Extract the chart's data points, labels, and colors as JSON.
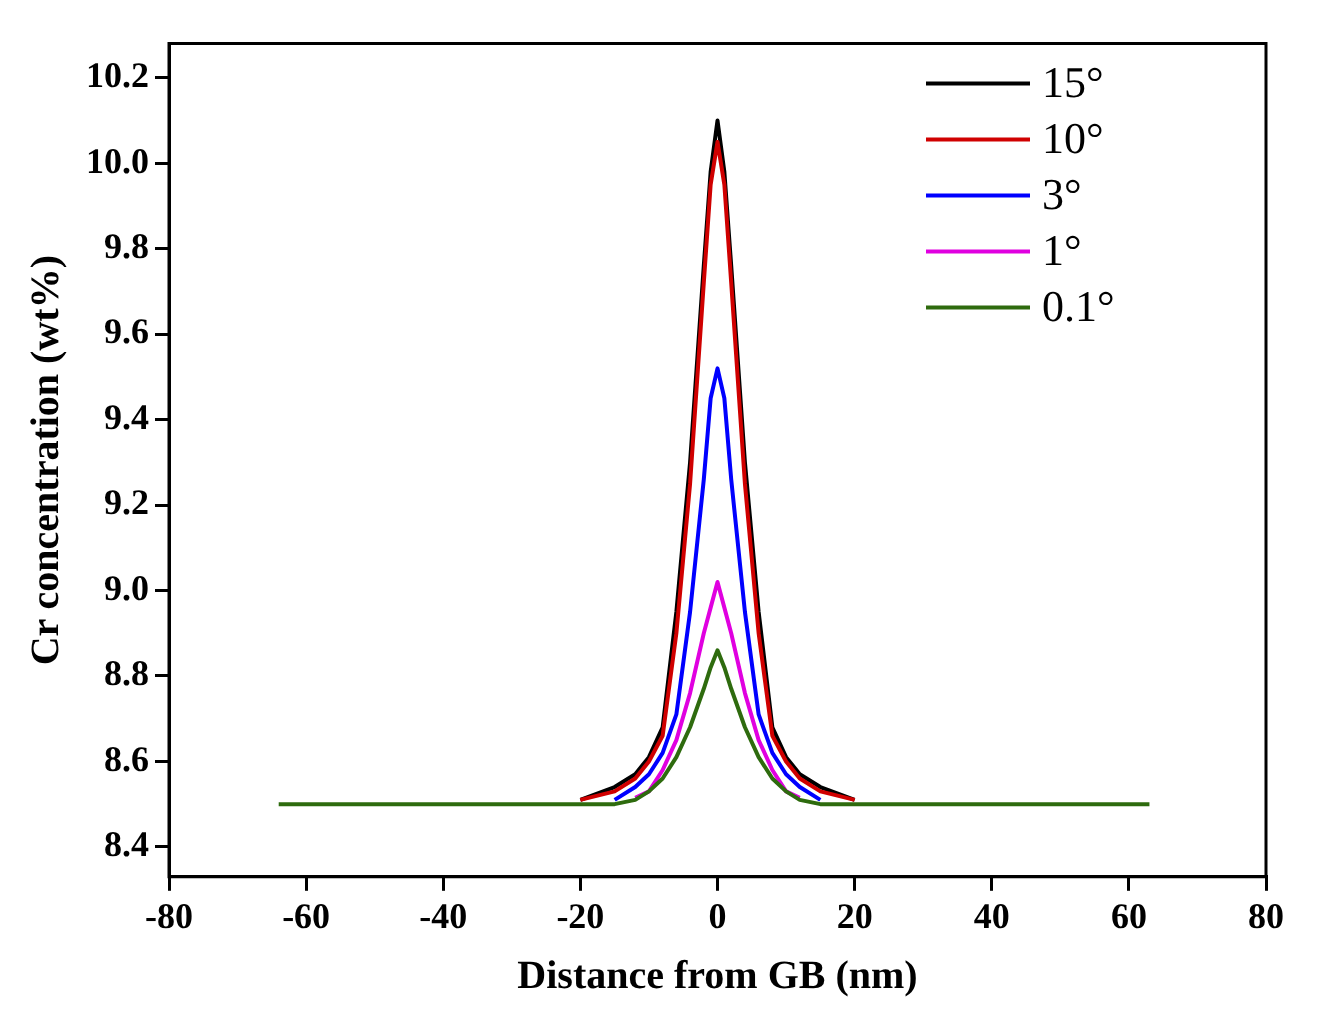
{
  "chart_data": {
    "type": "line",
    "xlabel": "Distance from GB (nm)",
    "ylabel": "Cr concentration (wt%)",
    "x": [
      -64,
      -40,
      -20,
      -15,
      -12,
      -10,
      -8,
      -6,
      -4,
      -2,
      -1,
      0,
      1,
      2,
      4,
      6,
      8,
      10,
      12,
      15,
      20,
      40,
      63
    ],
    "series": [
      {
        "name": "15°",
        "color": "#000000",
        "values": [
          null,
          null,
          8.51,
          8.54,
          8.57,
          8.61,
          8.68,
          8.95,
          9.3,
          9.76,
          9.98,
          10.1,
          9.98,
          9.76,
          9.3,
          8.95,
          8.68,
          8.61,
          8.57,
          8.54,
          8.51,
          null,
          null
        ]
      },
      {
        "name": "10°",
        "color": "#d00000",
        "values": [
          null,
          null,
          8.51,
          8.53,
          8.56,
          8.6,
          8.66,
          8.9,
          9.25,
          9.72,
          9.95,
          10.05,
          9.95,
          9.72,
          9.25,
          8.9,
          8.66,
          8.6,
          8.56,
          8.53,
          8.51,
          null,
          null
        ]
      },
      {
        "name": "3°",
        "color": "#0000ff",
        "values": [
          null,
          null,
          null,
          8.51,
          8.54,
          8.57,
          8.62,
          8.71,
          8.95,
          9.26,
          9.45,
          9.52,
          9.45,
          9.26,
          8.95,
          8.71,
          8.62,
          8.57,
          8.54,
          8.51,
          null,
          null,
          null
        ]
      },
      {
        "name": "1°",
        "color": "#e000e0",
        "values": [
          null,
          null,
          null,
          null,
          8.515,
          8.53,
          8.58,
          8.65,
          8.76,
          8.9,
          8.96,
          9.02,
          8.96,
          8.9,
          8.76,
          8.65,
          8.58,
          8.53,
          8.515,
          null,
          null,
          null,
          null
        ]
      },
      {
        "name": "0.1°",
        "color": "#2e6b0e",
        "values": [
          8.5,
          8.5,
          8.5,
          8.5,
          8.51,
          8.53,
          8.56,
          8.61,
          8.68,
          8.77,
          8.82,
          8.86,
          8.82,
          8.77,
          8.68,
          8.61,
          8.56,
          8.53,
          8.51,
          8.5,
          8.5,
          8.5,
          8.5
        ]
      }
    ],
    "xlim": [
      -80,
      80
    ],
    "xticks": [
      -80,
      -60,
      -40,
      -20,
      0,
      20,
      40,
      60,
      80
    ],
    "ylim": [
      8.33,
      10.28
    ],
    "yticks": [
      {
        "value": 8.4,
        "label": "8.4"
      },
      {
        "value": 8.6,
        "label": "8.6"
      },
      {
        "value": 8.8,
        "label": "8.8"
      },
      {
        "value": 9.0,
        "label": "9.0"
      },
      {
        "value": 9.2,
        "label": "9.2"
      },
      {
        "value": 9.4,
        "label": "9.4"
      },
      {
        "value": 9.6,
        "label": "9.6"
      },
      {
        "value": 9.8,
        "label": "9.8"
      },
      {
        "value": 10.0,
        "label": "10.0"
      },
      {
        "value": 10.2,
        "label": "10.2"
      }
    ],
    "grid": false,
    "legend": "top right",
    "marker": "none",
    "line_style": "solid"
  }
}
